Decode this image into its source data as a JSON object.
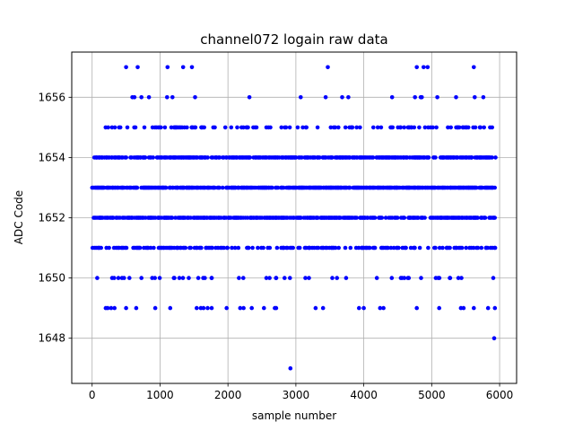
{
  "chart_data": {
    "type": "scatter",
    "title": "channel072 logain raw data",
    "xlabel": "sample number",
    "ylabel": "ADC Code",
    "xlim": [
      -300,
      6250
    ],
    "ylim": [
      1646.5,
      1657.5
    ],
    "grid": true,
    "xticks": [
      0,
      1000,
      2000,
      3000,
      4000,
      5000,
      6000
    ],
    "xtick_labels": [
      "0",
      "1000",
      "2000",
      "3000",
      "4000",
      "5000",
      "6000"
    ],
    "yticks": [
      1648,
      1650,
      1652,
      1654,
      1656
    ],
    "ytick_labels": [
      "1648",
      "1650",
      "1652",
      "1654",
      "1656"
    ],
    "marker_color": "#0000ff",
    "n_samples": 5930,
    "levels": [
      {
        "y": 1657,
        "x": [
          500,
          670,
          1110,
          1340,
          1470,
          3470,
          4780,
          4880,
          4940,
          5620
        ]
      },
      {
        "y": 1656,
        "ranges": [
          [
            0,
            5780
          ]
        ],
        "density": 0.03
      },
      {
        "y": 1655,
        "ranges": [
          [
            0,
            5930
          ]
        ],
        "density": 0.18
      },
      {
        "y": 1654,
        "ranges": [
          [
            0,
            5930
          ]
        ],
        "density": 0.6
      },
      {
        "y": 1653,
        "ranges": [
          [
            0,
            5930
          ]
        ],
        "density": 0.7
      },
      {
        "y": 1652,
        "ranges": [
          [
            0,
            5930
          ]
        ],
        "density": 0.6
      },
      {
        "y": 1651,
        "ranges": [
          [
            0,
            5930
          ]
        ],
        "density": 0.3
      },
      {
        "y": 1650,
        "ranges": [
          [
            0,
            5930
          ]
        ],
        "density": 0.06
      },
      {
        "y": 1649,
        "x": [
          200,
          230,
          280,
          330,
          500,
          650,
          930,
          1150,
          1540,
          1600,
          1640,
          1700,
          1760,
          1980,
          2180,
          2230,
          2350,
          2530,
          2690,
          2710,
          3290,
          3400,
          3930,
          4000,
          4240,
          4290,
          4780,
          5110,
          5430,
          5470,
          5620,
          5830,
          5930
        ]
      },
      {
        "y": 1648,
        "x": [
          5920
        ]
      },
      {
        "y": 1647,
        "x": [
          2920
        ]
      }
    ]
  }
}
